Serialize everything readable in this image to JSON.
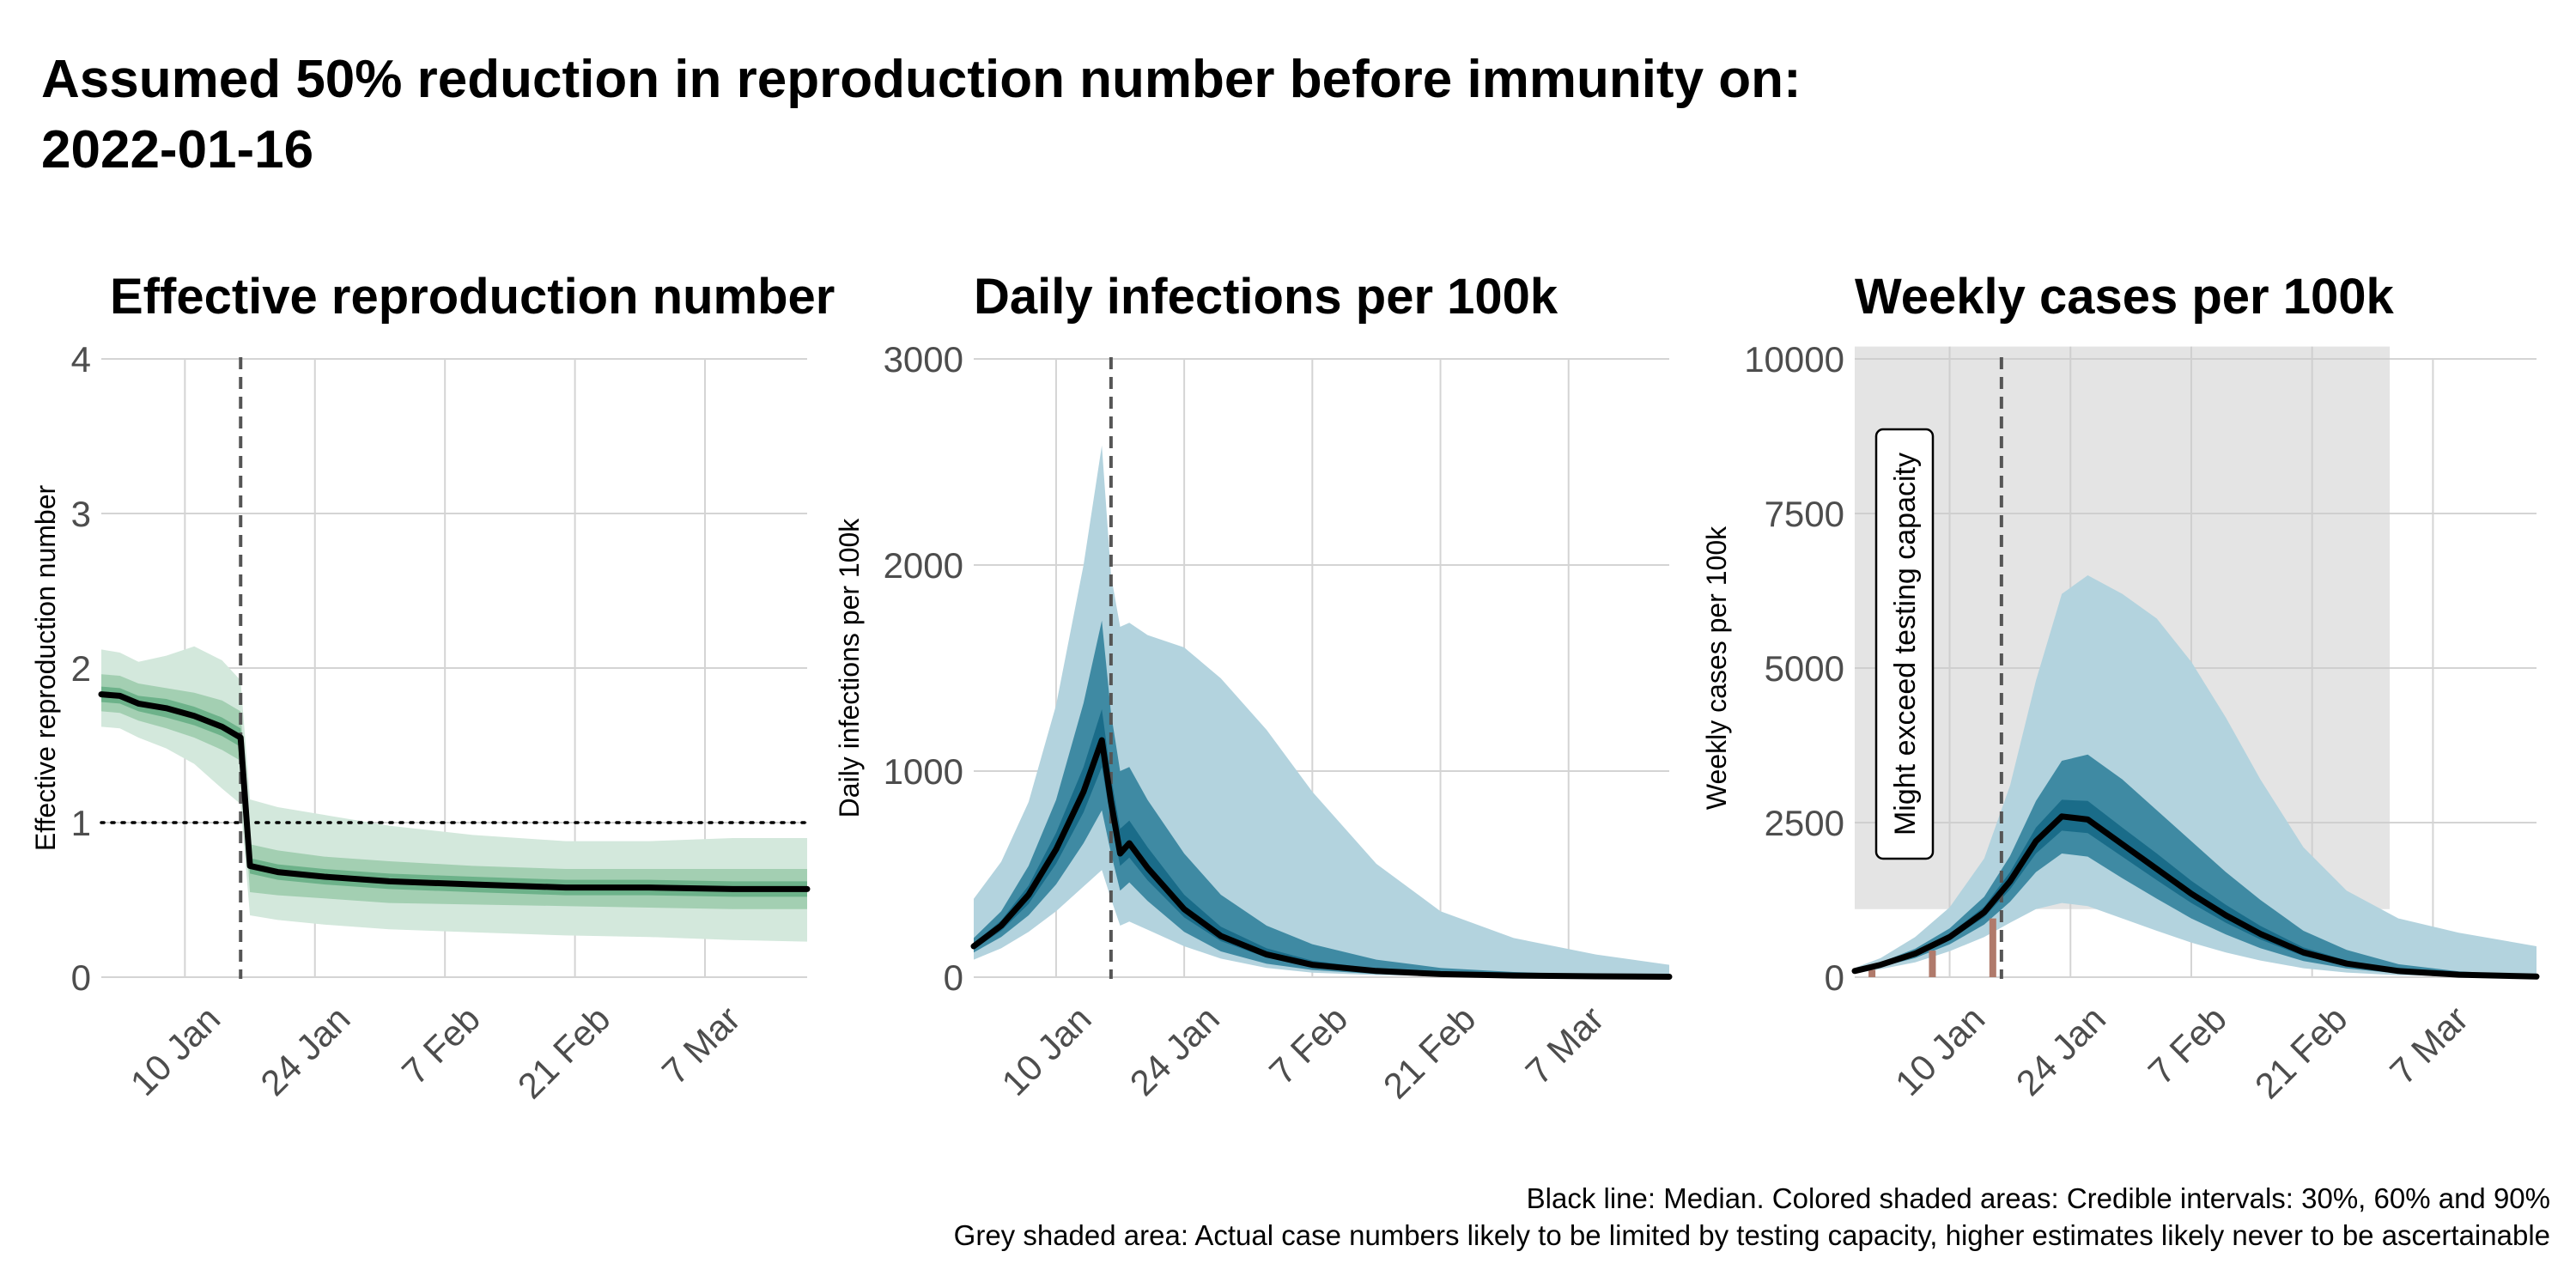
{
  "title_line1": "Assumed 50% reduction in reproduction number before immunity on:",
  "title_line2": "2022-01-16",
  "caption_line1": "Black line: Median. Colored shaded areas: Credible intervals: 30%, 60% and 90%",
  "caption_line2": "Grey shaded area: Actual case numbers likely to be limited by testing capacity, higher estimates likely never to be ascertainable",
  "colors": {
    "rt_bands": [
      "#d3e8dc",
      "#a3cfb2",
      "#6db28a"
    ],
    "infection_bands": [
      "#b3d3de",
      "#3f8aa3",
      "#1a6c89"
    ],
    "cases_bands": [
      "#b3d3de",
      "#3f8aa3",
      "#1a6c89"
    ],
    "median": "#000000",
    "grid": "#d4d4d4",
    "capacity_shade": "#e4e4e4",
    "reported_cases": "#b07a6b"
  },
  "chart_data": [
    {
      "type": "area",
      "title": "Effective reproduction number",
      "ylabel": "Effective reproduction number",
      "xlim": [
        "2022-01-01",
        "2022-03-18"
      ],
      "ylim": [
        0,
        4
      ],
      "yticks": [
        0,
        1,
        2,
        3,
        4
      ],
      "ytick_labels": [
        "0",
        "1",
        "2",
        "3",
        "4"
      ],
      "xticks": [
        "2022-01-10",
        "2022-01-24",
        "2022-02-07",
        "2022-02-21",
        "2022-03-07"
      ],
      "xtick_labels": [
        "10 Jan",
        "24 Jan",
        "7 Feb",
        "21 Feb",
        "7 Mar"
      ],
      "intervention_date": "2022-01-16",
      "reference_line": 1,
      "x": [
        "2022-01-01",
        "2022-01-03",
        "2022-01-05",
        "2022-01-08",
        "2022-01-11",
        "2022-01-14",
        "2022-01-16",
        "2022-01-17",
        "2022-01-20",
        "2022-01-25",
        "2022-02-01",
        "2022-02-10",
        "2022-02-20",
        "2022-03-01",
        "2022-03-10",
        "2022-03-18"
      ],
      "median": [
        1.83,
        1.82,
        1.77,
        1.74,
        1.69,
        1.62,
        1.55,
        0.72,
        0.68,
        0.65,
        0.62,
        0.6,
        0.58,
        0.58,
        0.57,
        0.57
      ],
      "ci30": [
        [
          1.78,
          1.88
        ],
        [
          1.77,
          1.87
        ],
        [
          1.72,
          1.82
        ],
        [
          1.68,
          1.8
        ],
        [
          1.63,
          1.75
        ],
        [
          1.56,
          1.68
        ],
        [
          1.49,
          1.61
        ],
        [
          0.67,
          0.77
        ],
        [
          0.63,
          0.73
        ],
        [
          0.6,
          0.7
        ],
        [
          0.57,
          0.67
        ],
        [
          0.55,
          0.65
        ],
        [
          0.53,
          0.63
        ],
        [
          0.53,
          0.63
        ],
        [
          0.52,
          0.62
        ],
        [
          0.52,
          0.62
        ]
      ],
      "ci60": [
        [
          1.72,
          1.96
        ],
        [
          1.71,
          1.95
        ],
        [
          1.66,
          1.9
        ],
        [
          1.61,
          1.87
        ],
        [
          1.55,
          1.84
        ],
        [
          1.47,
          1.79
        ],
        [
          1.4,
          1.72
        ],
        [
          0.55,
          0.86
        ],
        [
          0.53,
          0.82
        ],
        [
          0.51,
          0.78
        ],
        [
          0.48,
          0.75
        ],
        [
          0.47,
          0.72
        ],
        [
          0.46,
          0.7
        ],
        [
          0.45,
          0.7
        ],
        [
          0.44,
          0.7
        ],
        [
          0.44,
          0.7
        ]
      ],
      "ci90": [
        [
          1.62,
          2.12
        ],
        [
          1.61,
          2.1
        ],
        [
          1.55,
          2.04
        ],
        [
          1.48,
          2.08
        ],
        [
          1.38,
          2.14
        ],
        [
          1.22,
          2.05
        ],
        [
          1.12,
          1.92
        ],
        [
          0.4,
          1.15
        ],
        [
          0.37,
          1.1
        ],
        [
          0.34,
          1.05
        ],
        [
          0.31,
          0.98
        ],
        [
          0.29,
          0.92
        ],
        [
          0.27,
          0.88
        ],
        [
          0.26,
          0.88
        ],
        [
          0.24,
          0.9
        ],
        [
          0.23,
          0.9
        ]
      ]
    },
    {
      "type": "area",
      "title": "Daily infections per 100k",
      "ylabel": "Daily infections per 100k",
      "xlim": [
        "2022-01-01",
        "2022-03-18"
      ],
      "ylim": [
        0,
        3000
      ],
      "yticks": [
        0,
        1000,
        2000,
        3000
      ],
      "ytick_labels": [
        "0",
        "1000",
        "2000",
        "3000"
      ],
      "xticks": [
        "2022-01-10",
        "2022-01-24",
        "2022-02-07",
        "2022-02-21",
        "2022-03-07"
      ],
      "xtick_labels": [
        "10 Jan",
        "24 Jan",
        "7 Feb",
        "21 Feb",
        "7 Mar"
      ],
      "intervention_date": "2022-01-16",
      "x": [
        "2022-01-01",
        "2022-01-04",
        "2022-01-07",
        "2022-01-10",
        "2022-01-13",
        "2022-01-15",
        "2022-01-16",
        "2022-01-17",
        "2022-01-18",
        "2022-01-20",
        "2022-01-24",
        "2022-01-28",
        "2022-02-02",
        "2022-02-07",
        "2022-02-14",
        "2022-02-21",
        "2022-03-01",
        "2022-03-10",
        "2022-03-18"
      ],
      "median": [
        150,
        250,
        400,
        620,
        900,
        1150,
        850,
        600,
        650,
        530,
        330,
        200,
        110,
        60,
        30,
        15,
        8,
        4,
        2
      ],
      "ci30": [
        [
          135,
          165
        ],
        [
          225,
          275
        ],
        [
          355,
          445
        ],
        [
          550,
          700
        ],
        [
          800,
          1020
        ],
        [
          1020,
          1300
        ],
        [
          760,
          970
        ],
        [
          540,
          720
        ],
        [
          580,
          760
        ],
        [
          470,
          630
        ],
        [
          290,
          400
        ],
        [
          175,
          245
        ],
        [
          95,
          140
        ],
        [
          50,
          80
        ],
        [
          25,
          40
        ],
        [
          12,
          21
        ],
        [
          6,
          11
        ],
        [
          3,
          6
        ],
        [
          1,
          4
        ]
      ],
      "ci60": [
        [
          120,
          190
        ],
        [
          195,
          320
        ],
        [
          300,
          540
        ],
        [
          450,
          860
        ],
        [
          650,
          1330
        ],
        [
          810,
          1730
        ],
        [
          600,
          1280
        ],
        [
          420,
          1000
        ],
        [
          460,
          1020
        ],
        [
          370,
          860
        ],
        [
          220,
          600
        ],
        [
          125,
          400
        ],
        [
          65,
          250
        ],
        [
          35,
          160
        ],
        [
          15,
          85
        ],
        [
          7,
          45
        ],
        [
          3,
          25
        ],
        [
          2,
          12
        ],
        [
          1,
          7
        ]
      ],
      "ci90": [
        [
          85,
          380
        ],
        [
          140,
          560
        ],
        [
          220,
          850
        ],
        [
          320,
          1320
        ],
        [
          440,
          2000
        ],
        [
          520,
          2580
        ],
        [
          380,
          1950
        ],
        [
          250,
          1700
        ],
        [
          270,
          1720
        ],
        [
          230,
          1660
        ],
        [
          150,
          1600
        ],
        [
          90,
          1450
        ],
        [
          45,
          1200
        ],
        [
          22,
          900
        ],
        [
          10,
          550
        ],
        [
          5,
          320
        ],
        [
          3,
          190
        ],
        [
          2,
          110
        ],
        [
          1,
          60
        ]
      ]
    },
    {
      "type": "area",
      "title": "Weekly cases per 100k",
      "ylabel": "Weekly cases per 100k",
      "annotation": "Might exceed testing capacity",
      "xlim": [
        "2021-12-30",
        "2022-03-19"
      ],
      "ylim": [
        0,
        10000
      ],
      "yticks": [
        0,
        2500,
        5000,
        7500,
        10000
      ],
      "ytick_labels": [
        "0",
        "2500",
        "5000",
        "7500",
        "10000"
      ],
      "xticks": [
        "2022-01-10",
        "2022-01-24",
        "2022-02-07",
        "2022-02-21",
        "2022-03-07"
      ],
      "xtick_labels": [
        "10 Jan",
        "24 Jan",
        "7 Feb",
        "21 Feb",
        "7 Mar"
      ],
      "intervention_date": "2022-01-16",
      "capacity_shade": {
        "x_from": "2021-12-30",
        "x_to": "2022-03-02",
        "y_from": 1100,
        "y_to": 10200
      },
      "reported_cases": {
        "x": [
          "2022-01-01",
          "2022-01-08",
          "2022-01-15"
        ],
        "values": [
          120,
          430,
          950
        ]
      },
      "x": [
        "2021-12-30",
        "2022-01-02",
        "2022-01-06",
        "2022-01-10",
        "2022-01-14",
        "2022-01-17",
        "2022-01-20",
        "2022-01-23",
        "2022-01-26",
        "2022-01-30",
        "2022-02-03",
        "2022-02-07",
        "2022-02-11",
        "2022-02-15",
        "2022-02-20",
        "2022-02-25",
        "2022-03-03",
        "2022-03-10",
        "2022-03-19"
      ],
      "median": [
        100,
        200,
        380,
        650,
        1050,
        1550,
        2200,
        2600,
        2550,
        2150,
        1750,
        1350,
        1000,
        700,
        400,
        220,
        100,
        40,
        10
      ],
      "ci30": [
        [
          90,
          110
        ],
        [
          185,
          215
        ],
        [
          350,
          410
        ],
        [
          600,
          700
        ],
        [
          970,
          1140
        ],
        [
          1420,
          1700
        ],
        [
          2000,
          2420
        ],
        [
          2370,
          2870
        ],
        [
          2330,
          2850
        ],
        [
          1950,
          2420
        ],
        [
          1570,
          2000
        ],
        [
          1200,
          1560
        ],
        [
          880,
          1170
        ],
        [
          610,
          830
        ],
        [
          340,
          480
        ],
        [
          185,
          270
        ],
        [
          80,
          125
        ],
        [
          30,
          55
        ],
        [
          7,
          15
        ]
      ],
      "ci60": [
        [
          80,
          120
        ],
        [
          165,
          240
        ],
        [
          310,
          460
        ],
        [
          530,
          790
        ],
        [
          850,
          1300
        ],
        [
          1220,
          1960
        ],
        [
          1700,
          2850
        ],
        [
          2000,
          3500
        ],
        [
          1950,
          3600
        ],
        [
          1600,
          3200
        ],
        [
          1270,
          2700
        ],
        [
          950,
          2200
        ],
        [
          690,
          1700
        ],
        [
          470,
          1250
        ],
        [
          260,
          750
        ],
        [
          140,
          440
        ],
        [
          60,
          210
        ],
        [
          22,
          95
        ],
        [
          5,
          30
        ]
      ],
      "ci90": [
        [
          60,
          150
        ],
        [
          130,
          310
        ],
        [
          240,
          650
        ],
        [
          420,
          1130
        ],
        [
          650,
          1920
        ],
        [
          880,
          3100
        ],
        [
          1100,
          4800
        ],
        [
          1200,
          6200
        ],
        [
          1150,
          6500
        ],
        [
          950,
          6200
        ],
        [
          750,
          5800
        ],
        [
          560,
          5100
        ],
        [
          400,
          4200
        ],
        [
          270,
          3200
        ],
        [
          145,
          2100
        ],
        [
          75,
          1400
        ],
        [
          32,
          950
        ],
        [
          12,
          720
        ],
        [
          3,
          500
        ]
      ]
    }
  ]
}
